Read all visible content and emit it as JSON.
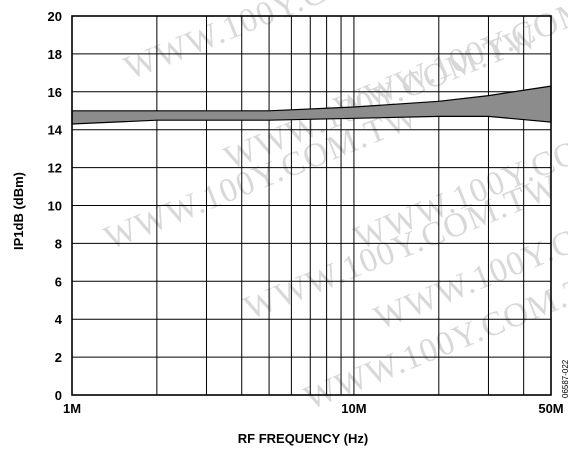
{
  "chart_data": {
    "type": "area",
    "title": "",
    "xlabel": "RF FREQUENCY (Hz)",
    "ylabel": "IP1dB (dBm)",
    "x_scale": "log",
    "xlim": [
      1000000,
      50000000
    ],
    "ylim": [
      0,
      20
    ],
    "grid": true,
    "legend": "none",
    "x_ticks": [
      {
        "value": 1000000,
        "label": "1M"
      },
      {
        "value": 10000000,
        "label": "10M"
      },
      {
        "value": 50000000,
        "label": "50M"
      }
    ],
    "y_ticks": [
      {
        "value": 0,
        "label": "0"
      },
      {
        "value": 2,
        "label": "2"
      },
      {
        "value": 4,
        "label": "4"
      },
      {
        "value": 6,
        "label": "6"
      },
      {
        "value": 8,
        "label": "8"
      },
      {
        "value": 10,
        "label": "10"
      },
      {
        "value": 12,
        "label": "12"
      },
      {
        "value": 14,
        "label": "14"
      },
      {
        "value": 16,
        "label": "16"
      },
      {
        "value": 18,
        "label": "18"
      },
      {
        "value": 20,
        "label": "20"
      }
    ],
    "band": {
      "color": "#8c8c8c",
      "x": [
        1000000,
        2000000,
        5000000,
        10000000,
        20000000,
        30000000,
        50000000
      ],
      "upper": [
        15.0,
        15.0,
        15.0,
        15.2,
        15.5,
        15.8,
        16.3
      ],
      "lower": [
        14.3,
        14.5,
        14.5,
        14.6,
        14.7,
        14.7,
        14.4
      ]
    },
    "figure_id": "06587-022"
  },
  "watermark_text": "WWW.100Y.COM.TW"
}
